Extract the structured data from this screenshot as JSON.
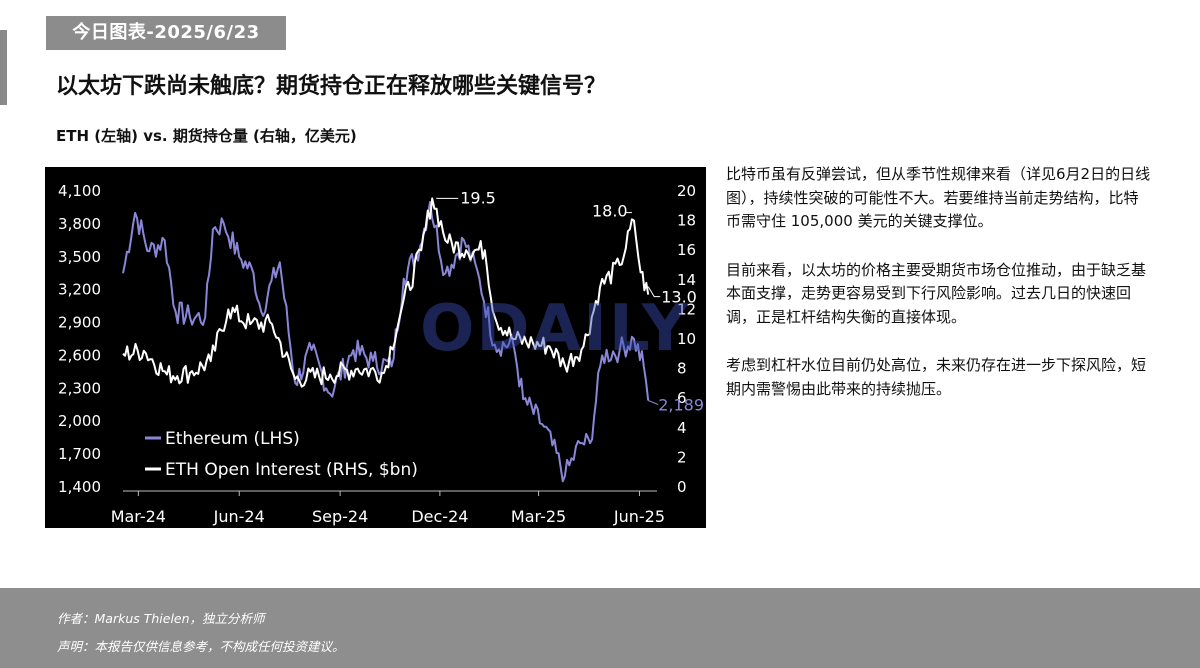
{
  "header": {
    "date_tag": "今日图表-2025/6/23",
    "title": "以太坊下跌尚未触底？期货持仓正在释放哪些关键信号？"
  },
  "chart_subtitle": "ETH (左轴) vs. 期货持仓量 (右轴，亿美元)",
  "watermark": "ODAILY",
  "commentary": {
    "p1": "比特币虽有反弹尝试，但从季节性规律来看（详见6月2日的日线图），持续性突破的可能性不大。若要维持当前走势结构，比特币需守住 105,000 美元的关键支撑位。",
    "p2": "目前来看，以太坊的价格主要受期货市场仓位推动，由于缺乏基本面支撑，走势更容易受到下行风险影响。过去几日的快速回调，正是杠杆结构失衡的直接体现。",
    "p3": "考虑到杠杆水位目前仍处高位，未来仍存在进一步下探风险，短期内需警惕由此带来的持续抛压。"
  },
  "footer": {
    "author": "作者：Markus Thielen，独立分析师",
    "disclaimer": "声明：本报告仅供信息参考，不构成任何投资建议。"
  },
  "colors": {
    "eth": "#8a86d8",
    "oi": "#ffffff",
    "chart_bg": "#000000",
    "footer_bg": "#8e8e8e",
    "tag_bg": "#8c8c8c"
  },
  "chart_data": {
    "type": "line",
    "x_ticks": [
      "Mar-24",
      "Jun-24",
      "Sep-24",
      "Dec-24",
      "Mar-25",
      "Jun-25"
    ],
    "y_left_ticks": [
      "4,100",
      "3,800",
      "3,500",
      "3,200",
      "2,900",
      "2,600",
      "2,300",
      "2,000",
      "1,700",
      "1,400"
    ],
    "y_right_ticks": [
      "20",
      "18",
      "16",
      "14",
      "12",
      "10",
      "8",
      "6",
      "4",
      "2",
      "0"
    ],
    "y_left_range": [
      1400,
      4100
    ],
    "y_right_range": [
      0,
      20
    ],
    "x_range": [
      "2024-03-01",
      "2025-07-01"
    ],
    "grid": false,
    "legend": "bottom-left",
    "series": [
      {
        "name": "Ethereum (LHS)",
        "axis": "left",
        "points": [
          [
            "2024-03-01",
            3350
          ],
          [
            "2024-03-12",
            3900
          ],
          [
            "2024-03-25",
            3550
          ],
          [
            "2024-04-08",
            3650
          ],
          [
            "2024-04-18",
            3000
          ],
          [
            "2024-05-01",
            2950
          ],
          [
            "2024-05-15",
            2950
          ],
          [
            "2024-05-22",
            3750
          ],
          [
            "2024-06-01",
            3800
          ],
          [
            "2024-06-15",
            3500
          ],
          [
            "2024-06-28",
            3350
          ],
          [
            "2024-07-05",
            3000
          ],
          [
            "2024-07-22",
            3450
          ],
          [
            "2024-08-05",
            2350
          ],
          [
            "2024-08-20",
            2650
          ],
          [
            "2024-09-06",
            2250
          ],
          [
            "2024-09-27",
            2650
          ],
          [
            "2024-10-15",
            2550
          ],
          [
            "2024-11-01",
            2500
          ],
          [
            "2024-11-12",
            3300
          ],
          [
            "2024-11-27",
            3600
          ],
          [
            "2024-12-06",
            4000
          ],
          [
            "2024-12-20",
            3350
          ],
          [
            "2025-01-06",
            3650
          ],
          [
            "2025-01-20",
            3300
          ],
          [
            "2025-02-03",
            2700
          ],
          [
            "2025-02-20",
            2700
          ],
          [
            "2025-03-01",
            2200
          ],
          [
            "2025-03-20",
            1950
          ],
          [
            "2025-04-08",
            1500
          ],
          [
            "2025-04-22",
            1800
          ],
          [
            "2025-05-01",
            1800
          ],
          [
            "2025-05-12",
            2600
          ],
          [
            "2025-05-28",
            2650
          ],
          [
            "2025-06-10",
            2750
          ],
          [
            "2025-06-19",
            2500
          ],
          [
            "2025-06-23",
            2189
          ]
        ]
      },
      {
        "name": "ETH Open Interest (RHS, $bn)",
        "axis": "right",
        "points": [
          [
            "2024-03-01",
            9.0
          ],
          [
            "2024-03-20",
            9.2
          ],
          [
            "2024-04-10",
            7.6
          ],
          [
            "2024-05-01",
            7.7
          ],
          [
            "2024-05-20",
            8.5
          ],
          [
            "2024-06-05",
            12.0
          ],
          [
            "2024-06-25",
            11.0
          ],
          [
            "2024-07-15",
            11.0
          ],
          [
            "2024-08-05",
            7.3
          ],
          [
            "2024-09-06",
            7.6
          ],
          [
            "2024-10-01",
            8.0
          ],
          [
            "2024-10-25",
            7.7
          ],
          [
            "2024-11-10",
            12.0
          ],
          [
            "2024-11-28",
            16.0
          ],
          [
            "2024-12-08",
            19.5
          ],
          [
            "2024-12-22",
            16.5
          ],
          [
            "2025-01-08",
            16.0
          ],
          [
            "2025-01-25",
            16.0
          ],
          [
            "2025-02-03",
            11.5
          ],
          [
            "2025-02-20",
            10.0
          ],
          [
            "2025-03-10",
            9.7
          ],
          [
            "2025-03-25",
            9.5
          ],
          [
            "2025-04-08",
            8.2
          ],
          [
            "2025-04-25",
            9.5
          ],
          [
            "2025-05-10",
            13.5
          ],
          [
            "2025-05-28",
            15.0
          ],
          [
            "2025-06-10",
            18.0
          ],
          [
            "2025-06-16",
            14.5
          ],
          [
            "2025-06-23",
            13.0
          ]
        ]
      }
    ],
    "annotations": [
      {
        "series": "ETH Open Interest (RHS, $bn)",
        "date": "2024-12-08",
        "label": "19.5"
      },
      {
        "series": "ETH Open Interest (RHS, $bn)",
        "date": "2025-06-10",
        "label": "18.0"
      },
      {
        "series": "ETH Open Interest (RHS, $bn)",
        "date": "2025-06-23",
        "label": "13.0"
      },
      {
        "series": "Ethereum (LHS)",
        "date": "2025-06-23",
        "label": "2,189"
      }
    ]
  }
}
